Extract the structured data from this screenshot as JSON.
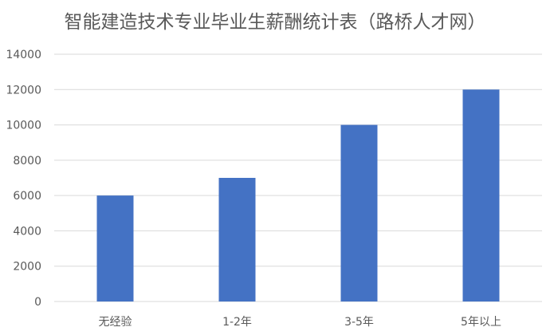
{
  "chart_data": {
    "type": "bar",
    "title": "智能建造技术专业毕业生薪酬统计表（路桥人才网）",
    "categories": [
      "无经验",
      "1-2年",
      "3-5年",
      "5年以上"
    ],
    "values": [
      6000,
      7000,
      10000,
      12000
    ],
    "xlabel": "",
    "ylabel": "",
    "ylim": [
      0,
      14000
    ],
    "yticks": [
      0,
      2000,
      4000,
      6000,
      8000,
      10000,
      12000,
      14000
    ],
    "grid": true,
    "legend": "none",
    "bar_color": "#4472C4",
    "grid_color": "#D9D9D9"
  }
}
